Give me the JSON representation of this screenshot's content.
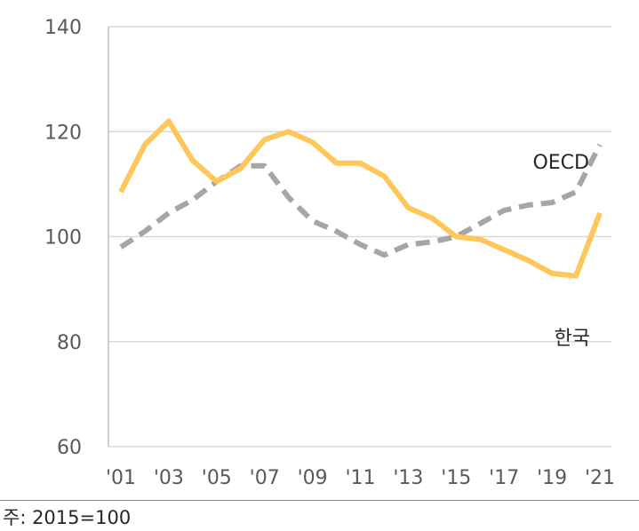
{
  "chart_data": {
    "type": "line",
    "title": "",
    "xlabel": "",
    "ylabel": "",
    "ylim": [
      60,
      140
    ],
    "yticks": [
      60,
      80,
      100,
      120,
      140
    ],
    "x": [
      2001,
      2002,
      2003,
      2004,
      2005,
      2006,
      2007,
      2008,
      2009,
      2010,
      2011,
      2012,
      2013,
      2014,
      2015,
      2016,
      2017,
      2018,
      2019,
      2020,
      2021
    ],
    "xtick_labels": [
      "'01",
      "'03",
      "'05",
      "'07",
      "'09",
      "'11",
      "'13",
      "'15",
      "'17",
      "'19",
      "'21"
    ],
    "xtick_years": [
      2001,
      2003,
      2005,
      2007,
      2009,
      2011,
      2013,
      2015,
      2017,
      2019,
      2021
    ],
    "grid": "horizontal",
    "series": [
      {
        "name": "한국",
        "color": "#ffc65a",
        "style": "solid",
        "values": [
          108.5,
          117.5,
          122,
          114.5,
          110.5,
          113,
          118.5,
          120,
          118,
          114,
          114,
          111.5,
          105.5,
          103.5,
          100,
          99.5,
          97.5,
          95.5,
          93,
          92.5,
          104.5
        ]
      },
      {
        "name": "OECD",
        "color": "#a6a6a6",
        "style": "dashed",
        "values": [
          98,
          101,
          104.5,
          107,
          110.5,
          113.5,
          113.5,
          107.5,
          103,
          101,
          98.5,
          96.5,
          98.5,
          99,
          100,
          102.5,
          105,
          106,
          106.5,
          108.5,
          117.5
        ]
      }
    ]
  },
  "footnote": "주: 2015=100"
}
